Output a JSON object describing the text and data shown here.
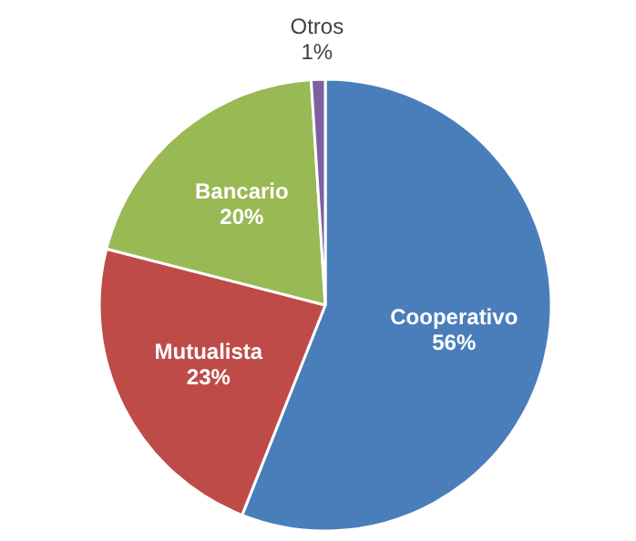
{
  "chart_data": {
    "type": "pie",
    "categories": [
      "Cooperativo",
      "Mutualista",
      "Bancario",
      "Otros"
    ],
    "values": [
      56,
      23,
      20,
      1
    ],
    "value_labels": [
      "56%",
      "23%",
      "20%",
      "1%"
    ],
    "colors": [
      "#4a7ebb",
      "#be4b48",
      "#98b954",
      "#7d60a0"
    ]
  }
}
